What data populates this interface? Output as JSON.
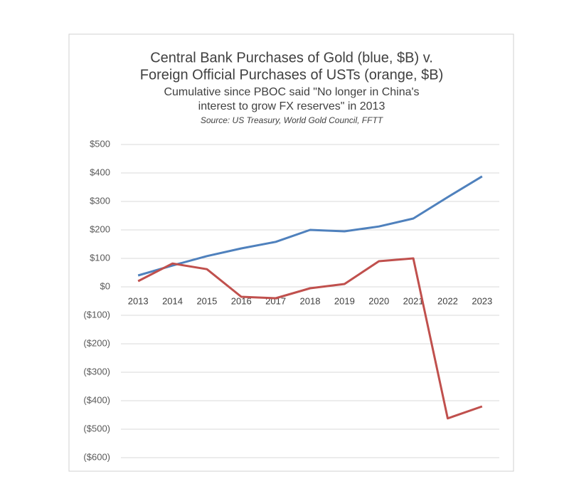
{
  "chart_data": {
    "type": "line",
    "title": [
      "Central Bank Purchases of Gold (blue, $B) v.",
      "Foreign Official Purchases of USTs (orange, $B)"
    ],
    "subtitle": [
      "Cumulative since PBOC said \"No longer in China's",
      "interest to grow FX reserves\" in 2013"
    ],
    "source": "Source: US Treasury, World Gold Council, FFTT",
    "categories": [
      "2013",
      "2014",
      "2015",
      "2016",
      "2017",
      "2018",
      "2019",
      "2020",
      "2021",
      "2022",
      "2023"
    ],
    "series": [
      {
        "color": "#4f81bd",
        "values": [
          40,
          75,
          108,
          135,
          158,
          200,
          195,
          212,
          240,
          315,
          388
        ]
      },
      {
        "color": "#c0504d",
        "values": [
          20,
          82,
          62,
          -35,
          -40,
          -5,
          10,
          90,
          100,
          -462,
          -420
        ]
      }
    ],
    "ylim": [
      -600,
      500
    ],
    "yticks": [
      {
        "value": 500,
        "label": "$500"
      },
      {
        "value": 400,
        "label": "$400"
      },
      {
        "value": 300,
        "label": "$300"
      },
      {
        "value": 200,
        "label": "$200"
      },
      {
        "value": 100,
        "label": "$100"
      },
      {
        "value": 0,
        "label": "$0"
      },
      {
        "value": -100,
        "label": "($100)"
      },
      {
        "value": -200,
        "label": "($200)"
      },
      {
        "value": -300,
        "label": "($300)"
      },
      {
        "value": -400,
        "label": "($400)"
      },
      {
        "value": -500,
        "label": "($500)"
      },
      {
        "value": -600,
        "label": "($600)"
      }
    ],
    "grid": true
  }
}
